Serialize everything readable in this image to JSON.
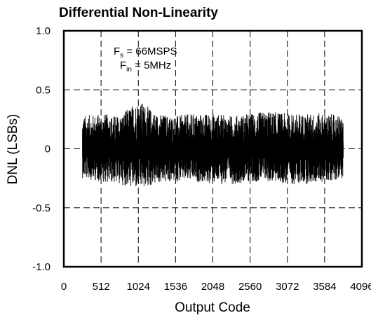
{
  "chart_data": {
    "type": "line",
    "title": "Differential Non-Linearity",
    "xlabel": "Output Code",
    "ylabel": "DNL (LSBs)",
    "xlim": [
      0,
      4096
    ],
    "ylim": [
      -1.0,
      1.0
    ],
    "x_ticks": [
      0,
      512,
      1024,
      1536,
      2048,
      2560,
      3072,
      3584,
      4096
    ],
    "x_tick_labels": [
      "0",
      "512",
      "1024",
      "1536",
      "2048",
      "2560",
      "3072",
      "3584",
      "4096"
    ],
    "y_ticks": [
      -1.0,
      -0.5,
      0,
      0.5,
      1.0
    ],
    "y_tick_labels": [
      "-1.0",
      "-0.5",
      "0",
      "0.5",
      "1.0"
    ],
    "grid": true,
    "grid_style": "dashed",
    "annotations": [
      {
        "main": "F",
        "sub": "s",
        "rest": " = 66MSPS"
      },
      {
        "main": "F",
        "sub": "in",
        "rest": " = 5MHz"
      }
    ],
    "series": [
      {
        "data_range_x": [
          256,
          3840
        ],
        "x": [
          256,
          512,
          768,
          1024,
          1280,
          1536,
          1792,
          2048,
          2304,
          2560,
          2816,
          3072,
          3328,
          3584,
          3840
        ],
        "upper_envelope": [
          0.28,
          0.3,
          0.28,
          0.42,
          0.3,
          0.28,
          0.3,
          0.3,
          0.28,
          0.3,
          0.32,
          0.3,
          0.3,
          0.3,
          0.28
        ],
        "lower_envelope": [
          -0.25,
          -0.28,
          -0.3,
          -0.35,
          -0.3,
          -0.28,
          -0.28,
          -0.3,
          -0.3,
          -0.28,
          -0.28,
          -0.3,
          -0.3,
          -0.28,
          -0.25
        ],
        "color": "#000000"
      }
    ]
  }
}
